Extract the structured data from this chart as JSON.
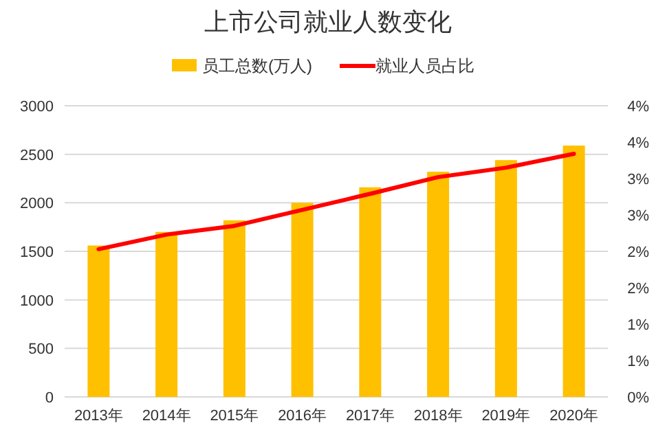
{
  "chart_data": {
    "type": "bar",
    "title": "上市公司就业人数变化",
    "legend": "top",
    "categories": [
      "2013年",
      "2014年",
      "2015年",
      "2016年",
      "2017年",
      "2018年",
      "2019年",
      "2020年"
    ],
    "series": [
      {
        "name": "员工总数(万人)",
        "color": "#ffc000",
        "values": [
          1560,
          1700,
          1820,
          2000,
          2160,
          2320,
          2440,
          2590
        ]
      },
      {
        "name": "就业人员占比",
        "type": "line",
        "axis": "y2",
        "color": "#ff0000",
        "values": [
          2.03,
          2.23,
          2.35,
          2.57,
          2.79,
          3.02,
          3.15,
          3.34
        ]
      }
    ],
    "ylim": [
      0,
      3000
    ],
    "yticks": [
      0,
      500,
      1000,
      1500,
      2000,
      2500,
      3000
    ],
    "y2lim": [
      0,
      4
    ],
    "y2ticks": [
      {
        "value": 0,
        "label": "0%"
      },
      {
        "value": 0.5,
        "label": "1%"
      },
      {
        "value": 1,
        "label": "1%"
      },
      {
        "value": 1.5,
        "label": "2%"
      },
      {
        "value": 2,
        "label": "2%"
      },
      {
        "value": 2.5,
        "label": "3%"
      },
      {
        "value": 3,
        "label": "3%"
      },
      {
        "value": 3.5,
        "label": "4%"
      },
      {
        "value": 4,
        "label": "4%"
      }
    ],
    "grid": "y"
  }
}
